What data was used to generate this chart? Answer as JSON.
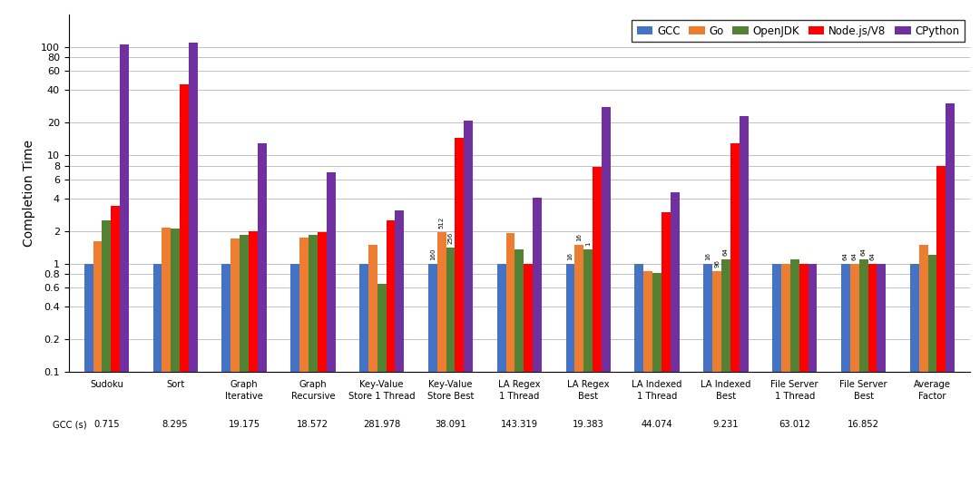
{
  "categories": [
    "Sudoku",
    "Sort",
    "Graph\nIterative",
    "Graph\nRecursive",
    "Key-Value\nStore 1 Thread",
    "Key-Value\nStore Best",
    "LA Regex\n1 Thread",
    "LA Regex\nBest",
    "LA Indexed\n1 Thread",
    "LA Indexed\nBest",
    "File Server\n1 Thread",
    "File Server\nBest",
    "Average\nFactor"
  ],
  "gcc_times": [
    "0.715",
    "8.295",
    "19.175",
    "18.572",
    "281.978",
    "38.091",
    "143.319",
    "19.383",
    "44.074",
    "9.231",
    "63.012",
    "16.852",
    ""
  ],
  "series": {
    "GCC": [
      1.0,
      1.0,
      1.0,
      1.0,
      1.0,
      1.0,
      1.0,
      1.0,
      1.0,
      1.0,
      1.0,
      1.0,
      1.0
    ],
    "Go": [
      1.6,
      2.15,
      1.7,
      1.75,
      1.5,
      1.95,
      1.9,
      1.5,
      0.85,
      0.85,
      1.0,
      1.0,
      1.5
    ],
    "OpenJDK": [
      2.5,
      2.1,
      1.85,
      1.85,
      0.65,
      1.4,
      1.35,
      1.35,
      0.82,
      1.1,
      1.1,
      1.1,
      1.2
    ],
    "Node.js/V8": [
      3.4,
      45.0,
      2.0,
      1.95,
      2.5,
      14.5,
      1.0,
      7.8,
      3.0,
      13.0,
      1.0,
      1.0,
      8.0
    ],
    "CPython": [
      105.0,
      110.0,
      13.0,
      7.0,
      3.1,
      21.0,
      4.1,
      28.0,
      4.6,
      23.0,
      1.0,
      1.0,
      30.0
    ]
  },
  "annotations": {
    "Key-Value\nStore Best": {
      "Go": "512",
      "OpenJDK": "256",
      "GCC": "160"
    },
    "LA Regex\nBest": {
      "GCC": "16",
      "Go": "16",
      "OpenJDK": "1"
    },
    "LA Indexed\nBest": {
      "GCC": "16",
      "Go": "96",
      "OpenJDK": "64"
    },
    "File Server\nBest": {
      "GCC": "64",
      "Go": "64",
      "OpenJDK": "64",
      "Node.js/V8": "64"
    }
  },
  "colors": {
    "GCC": "#4472C4",
    "Go": "#ED7D31",
    "OpenJDK": "#548235",
    "Node.js/V8": "#FF0000",
    "CPython": "#7030A0"
  },
  "ylim_low": 0.1,
  "ylim_high": 200,
  "yticks": [
    0.1,
    0.2,
    0.4,
    0.6,
    0.8,
    1.0,
    2.0,
    4.0,
    6.0,
    8.0,
    10.0,
    20.0,
    40.0,
    60.0,
    80.0,
    100.0
  ],
  "ylabel": "Completion Time",
  "legend_labels": [
    "GCC",
    "Go",
    "OpenJDK",
    "Node.js/V8",
    "CPython"
  ],
  "bar_width": 0.13,
  "figsize": [
    10.8,
    5.26
  ],
  "dpi": 100
}
